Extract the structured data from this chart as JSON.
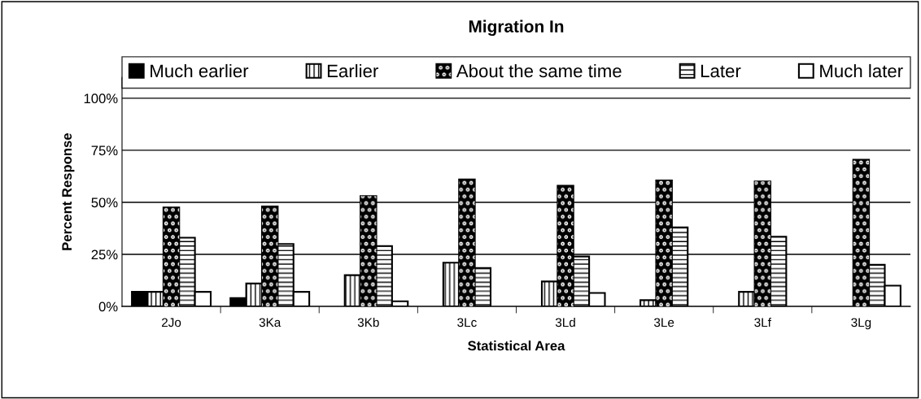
{
  "chart_data": {
    "type": "bar",
    "title": "Migration In",
    "xlabel": "Statistical Area",
    "ylabel": "Percent Response",
    "categories": [
      "2Jo",
      "3Ka",
      "3Kb",
      "3Lc",
      "3Ld",
      "3Le",
      "3Lf",
      "3Lg"
    ],
    "series": [
      {
        "name": "Much earlier",
        "color": "#000000",
        "values": [
          7,
          4,
          null,
          null,
          null,
          null,
          null,
          null
        ]
      },
      {
        "name": "Earlier",
        "color": "#ffffff",
        "values": [
          7,
          11,
          15,
          21,
          12,
          3,
          7,
          null
        ]
      },
      {
        "name": "About the same time",
        "color": "#000000",
        "values": [
          47.5,
          48,
          53,
          61,
          58,
          60.5,
          60,
          70.5
        ]
      },
      {
        "name": "Later",
        "color": "#ffffff",
        "values": [
          33,
          30,
          29,
          18.5,
          24,
          38,
          33.5,
          20
        ]
      },
      {
        "name": "Much later",
        "color": "#ffffff",
        "values": [
          7,
          7,
          2.5,
          null,
          6.5,
          null,
          null,
          10
        ]
      }
    ],
    "ylim": [
      0,
      110
    ],
    "yticks": [
      {
        "value": 0,
        "label": "0%"
      },
      {
        "value": 25,
        "label": "25%"
      },
      {
        "value": 50,
        "label": "50%"
      },
      {
        "value": 75,
        "label": "75%"
      },
      {
        "value": 100,
        "label": "100%"
      }
    ],
    "grid": "y",
    "legend": "top"
  }
}
